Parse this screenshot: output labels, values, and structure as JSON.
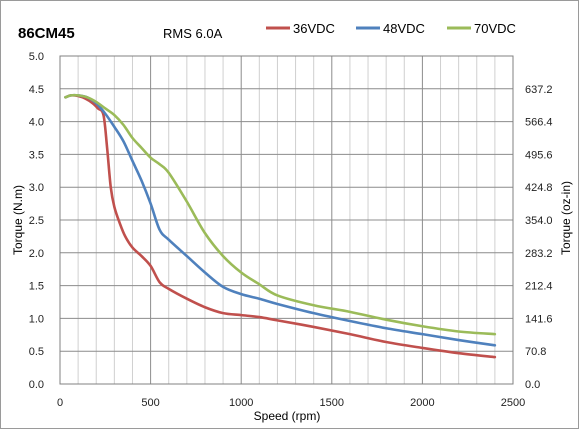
{
  "chart_data": {
    "type": "line",
    "title": "86CM45",
    "subtitle": "RMS 6.0A",
    "xlabel": "Speed (rpm)",
    "ylabel": "Torque (N.m)",
    "y2label": "Torque (oz-in)",
    "xlim": [
      0,
      2500
    ],
    "ylim": [
      0,
      5.0
    ],
    "x_ticks": [
      "0",
      "500",
      "1000",
      "1500",
      "2000",
      "2500"
    ],
    "y_ticks": [
      "0.0",
      "0.5",
      "1.0",
      "1.5",
      "2.0",
      "2.5",
      "3.0",
      "3.5",
      "4.0",
      "4.5",
      "5.0"
    ],
    "y2_ticks": [
      "0.0",
      "70.8",
      "141.6",
      "212.4",
      "283.2",
      "354.0",
      "424.8",
      "495.6",
      "566.4",
      "637.2"
    ],
    "grid": true,
    "legend_position": "top",
    "series": [
      {
        "name": "36VDC",
        "color": "#C0504D",
        "x": [
          30,
          60,
          100,
          140,
          180,
          210,
          240,
          260,
          280,
          300,
          330,
          360,
          400,
          450,
          500,
          550,
          600,
          700,
          800,
          900,
          1000,
          1100,
          1200,
          1400,
          1600,
          1800,
          2000,
          2200,
          2400
        ],
        "y": [
          4.37,
          4.4,
          4.39,
          4.35,
          4.28,
          4.2,
          4.1,
          3.6,
          3.0,
          2.7,
          2.45,
          2.25,
          2.08,
          1.95,
          1.8,
          1.55,
          1.45,
          1.3,
          1.17,
          1.08,
          1.05,
          1.02,
          0.97,
          0.87,
          0.76,
          0.64,
          0.55,
          0.47,
          0.41
        ]
      },
      {
        "name": "48VDC",
        "color": "#4F81BD",
        "x": [
          30,
          60,
          100,
          150,
          200,
          250,
          300,
          350,
          400,
          450,
          500,
          550,
          600,
          700,
          800,
          900,
          1000,
          1100,
          1200,
          1400,
          1600,
          1800,
          2000,
          2200,
          2400
        ],
        "y": [
          4.37,
          4.4,
          4.4,
          4.37,
          4.28,
          4.12,
          3.92,
          3.7,
          3.4,
          3.1,
          2.75,
          2.35,
          2.2,
          1.95,
          1.7,
          1.48,
          1.37,
          1.3,
          1.22,
          1.08,
          0.96,
          0.85,
          0.76,
          0.67,
          0.59
        ]
      },
      {
        "name": "70VDC",
        "color": "#9BBB59",
        "x": [
          30,
          60,
          100,
          150,
          200,
          250,
          300,
          350,
          400,
          450,
          500,
          550,
          600,
          700,
          800,
          900,
          1000,
          1100,
          1200,
          1400,
          1600,
          1800,
          2000,
          2200,
          2400
        ],
        "y": [
          4.37,
          4.4,
          4.4,
          4.37,
          4.3,
          4.2,
          4.1,
          3.95,
          3.75,
          3.6,
          3.45,
          3.35,
          3.22,
          2.78,
          2.3,
          1.95,
          1.7,
          1.52,
          1.35,
          1.2,
          1.1,
          0.98,
          0.88,
          0.8,
          0.76
        ]
      }
    ]
  }
}
